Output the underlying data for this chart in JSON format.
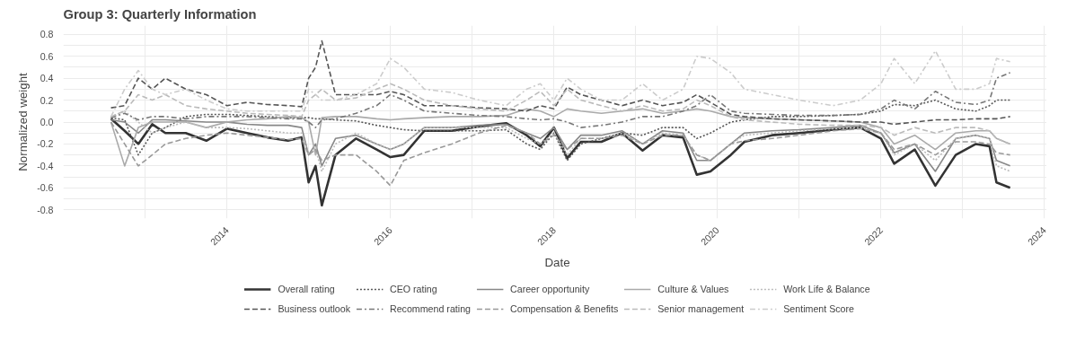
{
  "chart_data": {
    "type": "line",
    "title": "Group 3: Quarterly Information",
    "xlabel": "Date",
    "ylabel": "Normalized weight",
    "legend": "bottom",
    "grid": true,
    "marker": "none",
    "x": [
      "2012-08",
      "2012-10",
      "2012-12",
      "2013-02",
      "2013-04",
      "2013-07",
      "2013-10",
      "2014-01",
      "2014-04",
      "2014-07",
      "2014-10",
      "2014-12",
      "2015-01",
      "2015-02",
      "2015-03",
      "2015-05",
      "2015-08",
      "2015-11",
      "2016-01",
      "2016-03",
      "2016-06",
      "2016-10",
      "2017-02",
      "2017-06",
      "2017-09",
      "2017-11",
      "2018-01",
      "2018-03",
      "2018-05",
      "2018-08",
      "2018-11",
      "2019-02",
      "2019-05",
      "2019-08",
      "2019-10",
      "2019-12",
      "2020-03",
      "2020-05",
      "2020-09",
      "2021-01",
      "2021-06",
      "2021-10",
      "2022-01",
      "2022-03",
      "2022-06",
      "2022-09",
      "2022-12",
      "2023-03",
      "2023-05",
      "2023-06",
      "2023-08"
    ],
    "xlim": [
      "2012-01",
      "2024-02"
    ],
    "xticks": [
      {
        "value": "2013",
        "label": null
      },
      {
        "value": "2014",
        "label": "2014"
      },
      {
        "value": "2015",
        "label": null
      },
      {
        "value": "2016",
        "label": "2016"
      },
      {
        "value": "2017",
        "label": null
      },
      {
        "value": "2018",
        "label": "2018"
      },
      {
        "value": "2019",
        "label": null
      },
      {
        "value": "2020",
        "label": "2020"
      },
      {
        "value": "2021",
        "label": null
      },
      {
        "value": "2022",
        "label": "2022"
      },
      {
        "value": "2023",
        "label": null
      },
      {
        "value": "2024",
        "label": "2024"
      }
    ],
    "ylim": [
      -0.88,
      0.88
    ],
    "yticks": [
      -0.8,
      {
        "value": -0.7,
        "label": null
      },
      -0.6,
      {
        "value": -0.5,
        "label": null
      },
      -0.4,
      {
        "value": -0.3,
        "label": null
      },
      -0.2,
      {
        "value": -0.1,
        "label": null
      },
      {
        "value": 0,
        "label": "0.0"
      },
      {
        "value": 0.1,
        "label": null
      },
      0.2,
      {
        "value": 0.3,
        "label": null
      },
      0.4,
      {
        "value": 0.5,
        "label": null
      },
      0.6,
      {
        "value": 0.7,
        "label": null
      },
      0.8
    ],
    "series": [
      {
        "name": "Overall rating",
        "color": "#333333",
        "line_style": "solid",
        "values": [
          0.03,
          -0.08,
          -0.2,
          -0.02,
          -0.1,
          -0.1,
          -0.17,
          -0.06,
          -0.1,
          -0.14,
          -0.17,
          -0.14,
          -0.55,
          -0.4,
          -0.76,
          -0.3,
          -0.15,
          -0.25,
          -0.32,
          -0.3,
          -0.08,
          -0.08,
          -0.04,
          -0.01,
          -0.12,
          -0.22,
          -0.05,
          -0.33,
          -0.18,
          -0.18,
          -0.1,
          -0.26,
          -0.12,
          -0.14,
          -0.48,
          -0.45,
          -0.3,
          -0.18,
          -0.12,
          -0.1,
          -0.07,
          -0.05,
          -0.15,
          -0.38,
          -0.25,
          -0.58,
          -0.3,
          -0.2,
          -0.22,
          -0.55,
          -0.6
        ]
      },
      {
        "name": "CEO rating",
        "color": "#555555",
        "line_style": "dotted",
        "values": [
          0.04,
          0.02,
          -0.3,
          -0.1,
          -0.05,
          0.05,
          0.07,
          0.07,
          0.06,
          0.05,
          0.04,
          0.04,
          0.04,
          0.03,
          0.03,
          0.02,
          0.01,
          -0.03,
          -0.05,
          -0.07,
          -0.08,
          -0.08,
          -0.08,
          -0.07,
          -0.2,
          -0.25,
          -0.1,
          -0.35,
          -0.2,
          -0.15,
          -0.1,
          -0.12,
          -0.05,
          -0.05,
          -0.15,
          -0.1,
          0.0,
          0.02,
          0.05,
          0.05,
          0.06,
          0.07,
          0.1,
          0.16,
          0.15,
          0.2,
          0.12,
          0.1,
          0.15,
          0.2,
          0.2
        ]
      },
      {
        "name": "Career opportunity",
        "color": "#888888",
        "line_style": "solid",
        "values": [
          0.02,
          0.0,
          -0.1,
          0.02,
          0.02,
          0.01,
          0.0,
          0.0,
          -0.02,
          -0.03,
          -0.03,
          -0.05,
          -0.3,
          -0.2,
          -0.4,
          -0.15,
          -0.12,
          -0.2,
          -0.25,
          -0.2,
          -0.05,
          -0.05,
          -0.03,
          -0.02,
          -0.1,
          -0.15,
          -0.05,
          -0.25,
          -0.12,
          -0.12,
          -0.08,
          -0.2,
          -0.08,
          -0.1,
          -0.35,
          -0.35,
          -0.2,
          -0.1,
          -0.08,
          -0.07,
          -0.05,
          -0.03,
          -0.1,
          -0.28,
          -0.2,
          -0.45,
          -0.15,
          -0.12,
          -0.15,
          -0.35,
          -0.4
        ]
      },
      {
        "name": "Culture & Values",
        "color": "#aaaaaa",
        "line_style": "solid",
        "values": [
          0.0,
          -0.4,
          -0.05,
          0.0,
          0.0,
          0.0,
          -0.05,
          0.0,
          0.02,
          0.03,
          0.05,
          0.04,
          0.0,
          -0.3,
          0.04,
          0.05,
          0.05,
          0.03,
          0.02,
          0.03,
          0.04,
          0.05,
          0.05,
          0.06,
          0.12,
          0.1,
          0.05,
          0.12,
          0.1,
          0.08,
          0.1,
          0.12,
          0.08,
          0.1,
          0.12,
          0.1,
          0.05,
          0.04,
          0.03,
          0.02,
          0.01,
          0.0,
          -0.05,
          -0.2,
          -0.12,
          -0.25,
          -0.1,
          -0.08,
          -0.08,
          -0.15,
          -0.2
        ]
      },
      {
        "name": "Work Life & Balance",
        "color": "#bbbbbb",
        "line_style": "dotted",
        "values": [
          0.05,
          0.1,
          0.0,
          -0.1,
          -0.05,
          0.0,
          -0.05,
          -0.05,
          -0.06,
          -0.08,
          -0.1,
          -0.1,
          -0.3,
          -0.25,
          -0.45,
          -0.2,
          -0.1,
          -0.2,
          -0.25,
          -0.2,
          -0.05,
          -0.05,
          -0.05,
          -0.05,
          -0.15,
          -0.2,
          -0.1,
          -0.3,
          -0.15,
          -0.15,
          -0.1,
          -0.2,
          -0.1,
          -0.12,
          -0.3,
          -0.35,
          -0.2,
          -0.12,
          -0.1,
          -0.08,
          -0.06,
          -0.05,
          -0.1,
          -0.3,
          -0.2,
          -0.35,
          -0.15,
          -0.12,
          -0.15,
          -0.4,
          -0.45
        ]
      },
      {
        "name": "Business outlook",
        "color": "#555555",
        "line_style": "dashed",
        "values": [
          0.13,
          0.15,
          0.4,
          0.3,
          0.4,
          0.3,
          0.25,
          0.15,
          0.18,
          0.16,
          0.15,
          0.14,
          0.4,
          0.5,
          0.74,
          0.25,
          0.25,
          0.25,
          0.28,
          0.25,
          0.15,
          0.15,
          0.13,
          0.12,
          0.1,
          0.15,
          0.12,
          0.32,
          0.25,
          0.2,
          0.15,
          0.2,
          0.15,
          0.18,
          0.25,
          0.18,
          0.07,
          0.05,
          0.03,
          0.02,
          0.01,
          0.0,
          0.0,
          -0.02,
          0.0,
          0.02,
          0.02,
          0.03,
          0.03,
          0.03,
          0.05
        ]
      },
      {
        "name": "Recommend rating",
        "color": "#777777",
        "line_style": "dashdot",
        "values": [
          0.04,
          0.08,
          0.02,
          0.05,
          0.05,
          0.03,
          0.05,
          0.05,
          0.05,
          0.04,
          0.03,
          0.03,
          0.0,
          -0.05,
          0.02,
          0.03,
          0.08,
          0.15,
          0.25,
          0.2,
          0.1,
          0.08,
          0.06,
          0.05,
          0.03,
          0.02,
          0.03,
          0.0,
          -0.05,
          -0.03,
          0.0,
          0.05,
          0.05,
          0.1,
          0.15,
          0.25,
          0.1,
          0.08,
          0.07,
          0.06,
          0.06,
          0.07,
          0.12,
          0.2,
          0.12,
          0.28,
          0.18,
          0.16,
          0.2,
          0.4,
          0.45
        ]
      },
      {
        "name": "Compensation & Benefits",
        "color": "#999999",
        "line_style": "dashed",
        "values": [
          0.0,
          -0.2,
          -0.4,
          -0.3,
          -0.2,
          -0.15,
          -0.12,
          -0.1,
          -0.12,
          -0.14,
          -0.16,
          -0.15,
          -0.3,
          -0.25,
          -0.35,
          -0.3,
          -0.3,
          -0.45,
          -0.58,
          -0.35,
          -0.28,
          -0.2,
          -0.1,
          -0.03,
          -0.1,
          -0.2,
          -0.12,
          -0.25,
          -0.15,
          -0.15,
          -0.12,
          -0.2,
          -0.12,
          -0.12,
          -0.3,
          -0.35,
          -0.2,
          -0.17,
          -0.15,
          -0.12,
          -0.08,
          -0.06,
          -0.1,
          -0.25,
          -0.2,
          -0.3,
          -0.18,
          -0.18,
          -0.2,
          -0.28,
          -0.3
        ]
      },
      {
        "name": "Senior management",
        "color": "#bbbbbb",
        "line_style": "dashed",
        "values": [
          0.05,
          0.1,
          0.25,
          0.2,
          0.25,
          0.15,
          0.12,
          0.1,
          0.08,
          0.07,
          0.06,
          0.05,
          0.2,
          0.25,
          0.3,
          0.2,
          0.22,
          0.3,
          0.35,
          0.3,
          0.2,
          0.15,
          0.12,
          0.1,
          0.2,
          0.28,
          0.15,
          0.3,
          0.2,
          0.15,
          0.1,
          0.15,
          0.1,
          0.12,
          0.2,
          0.15,
          0.05,
          0.02,
          0.0,
          -0.02,
          -0.03,
          -0.03,
          -0.05,
          -0.12,
          -0.05,
          -0.1,
          -0.05,
          -0.05,
          -0.08,
          -0.15,
          -0.2
        ]
      },
      {
        "name": "Sentiment Score",
        "color": "#cccccc",
        "line_style": "dashdot",
        "values": [
          0.05,
          0.3,
          0.47,
          0.3,
          0.25,
          0.3,
          0.2,
          0.12,
          0.1,
          0.1,
          0.1,
          0.1,
          0.3,
          0.25,
          0.2,
          0.2,
          0.25,
          0.35,
          0.58,
          0.5,
          0.3,
          0.27,
          0.2,
          0.15,
          0.3,
          0.35,
          0.2,
          0.4,
          0.3,
          0.2,
          0.2,
          0.35,
          0.2,
          0.3,
          0.6,
          0.58,
          0.45,
          0.3,
          0.25,
          0.2,
          0.15,
          0.2,
          0.35,
          0.58,
          0.35,
          0.65,
          0.3,
          0.3,
          0.35,
          0.58,
          0.55
        ]
      }
    ]
  }
}
